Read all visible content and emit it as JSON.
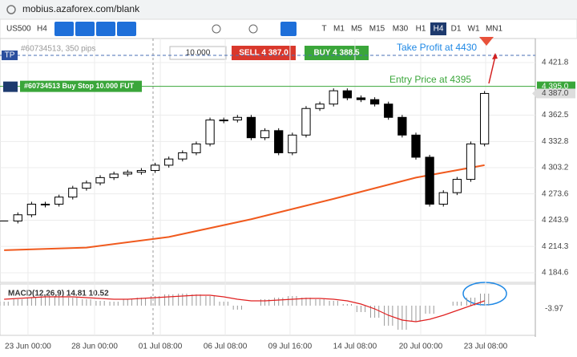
{
  "browser": {
    "url": "mobius.azaforex.com/blank"
  },
  "toolbar": {
    "symbol": "US500",
    "timeframe": "H4",
    "periods": [
      "T",
      "M1",
      "M5",
      "M15",
      "M30",
      "H1",
      "H4",
      "D1",
      "W1",
      "MN1"
    ],
    "active_period": 6
  },
  "order_panel": {
    "quantity": "10.000",
    "sell": "SELL 4 387.0",
    "buy": "BUY 4 388.5"
  },
  "chart": {
    "xlim": [
      -0.3,
      38.7
    ],
    "ylim": [
      4173.7,
      4449
    ],
    "yticks": [
      {
        "value": 4421.8,
        "label": "4 421.8"
      },
      {
        "value": 4362.5,
        "label": "4 362.5"
      },
      {
        "value": 4332.8,
        "label": "4 332.8"
      },
      {
        "value": 4303.2,
        "label": "4 303.2"
      },
      {
        "value": 4273.6,
        "label": "4 273.6"
      },
      {
        "value": 4243.9,
        "label": "4 243.9"
      },
      {
        "value": 4214.3,
        "label": "4 214.3"
      },
      {
        "value": 4184.6,
        "label": "4 184.6"
      }
    ],
    "xticks": [
      {
        "value": 1.74,
        "label": "23 Jun 00:00"
      },
      {
        "value": 6.59,
        "label": "28 Jun 00:00"
      },
      {
        "value": 11.38,
        "label": "01 Jul 08:00"
      },
      {
        "value": 16.11,
        "label": "06 Jul 08:00"
      },
      {
        "value": 20.83,
        "label": "09 Jul 16:00"
      },
      {
        "value": 25.56,
        "label": "14 Jul 08:00"
      },
      {
        "value": 30.35,
        "label": "20 Jul 00:00"
      },
      {
        "value": 35.08,
        "label": "23 Jul 08:00"
      }
    ],
    "crosshair_x": 10.85,
    "close": [
      4243,
      4250,
      4262,
      4262,
      4270,
      4280,
      4286,
      4292,
      4296,
      4298,
      4300,
      4306,
      4313,
      4320,
      4330,
      4357,
      4357,
      4360,
      4337,
      4345,
      4320,
      4340,
      4370,
      4375,
      4390,
      4382,
      4380,
      4375,
      4360,
      4340,
      4315,
      4262,
      4275,
      4290,
      4330,
      4387
    ],
    "ma": {
      "color": "#f05a1e",
      "x": [
        0,
        6,
        12,
        18,
        24,
        30,
        35
      ],
      "values": [
        4210,
        4213,
        4225,
        4245,
        4268,
        4292,
        4306
      ]
    },
    "take_profit": {
      "tag": "TP",
      "label": "#60734513, 350 pips",
      "value": 4430,
      "annotation": "Take Profit at 4430"
    },
    "entry": {
      "label": "#60734513 Buy Stop 10.000 FUT",
      "value": 4395,
      "annotation": "Entry Price at 4395",
      "price_label": "4 395.0"
    },
    "last_price": {
      "value": 4387,
      "label": "4 387.0"
    }
  },
  "macd": {
    "title": "MACD(12,26,9) 14.81 10.52",
    "ylim": [
      -35,
      25
    ],
    "yticks": [
      {
        "value": -3.97,
        "label": "-3.97"
      }
    ],
    "histogram": [
      5,
      8,
      10,
      12,
      12,
      10,
      8,
      6,
      5,
      8,
      10,
      12,
      14,
      15,
      14,
      12,
      5,
      -5,
      0,
      8,
      10,
      12,
      10,
      8,
      6,
      2,
      -8,
      -15,
      -25,
      -30,
      -20,
      -10,
      0,
      5,
      10,
      15
    ],
    "signal": {
      "color": "#e02020",
      "values": [
        8,
        9,
        10,
        11,
        11,
        11,
        10,
        9,
        8,
        8,
        9,
        10,
        11,
        12,
        13,
        13,
        11,
        8,
        6,
        6,
        7,
        8,
        9,
        9,
        8,
        6,
        2,
        -4,
        -12,
        -18,
        -20,
        -17,
        -12,
        -6,
        0,
        6
      ]
    }
  }
}
